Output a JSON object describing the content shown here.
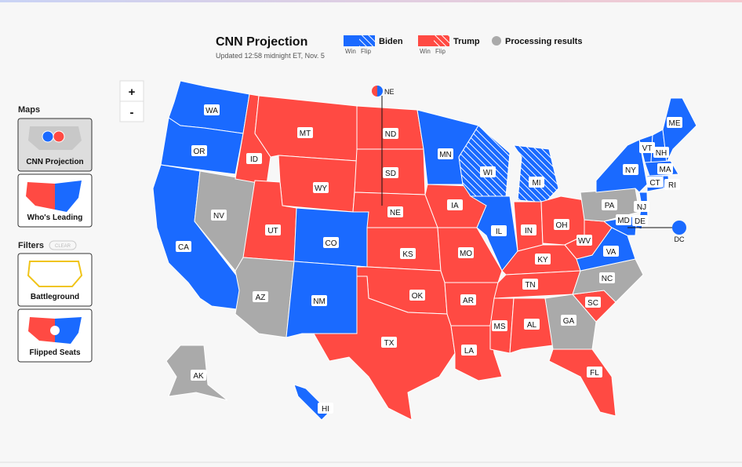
{
  "header": {
    "title": "CNN Projection",
    "updated": "Updated 12:58 midnight ET, Nov. 5",
    "legend": [
      {
        "name": "Biden",
        "status": "biden",
        "sub": [
          "Win",
          "Flip"
        ]
      },
      {
        "name": "Trump",
        "status": "trump",
        "sub": [
          "Win",
          "Flip"
        ]
      },
      {
        "name": "Processing results",
        "status": "processing"
      }
    ]
  },
  "zoom": [
    "+",
    "-"
  ],
  "sidebar": {
    "maps_heading": "Maps",
    "map_buttons": [
      "CNN Projection",
      "Who's Leading"
    ],
    "filters_heading": "Filters",
    "clear": "CLEAR",
    "filter_buttons": [
      "Battleground",
      "Flipped Seats"
    ]
  },
  "status_colors": {
    "biden": "#1a6aff",
    "trump": "#ff4a43",
    "processing": "#aaaaaa"
  },
  "states": [
    {
      "label": "WA",
      "status": "biden"
    },
    {
      "label": "OR",
      "status": "biden"
    },
    {
      "label": "CA",
      "status": "biden"
    },
    {
      "label": "NV",
      "status": "processing"
    },
    {
      "label": "ID",
      "status": "trump"
    },
    {
      "label": "MT",
      "status": "trump"
    },
    {
      "label": "WY",
      "status": "trump"
    },
    {
      "label": "UT",
      "status": "trump"
    },
    {
      "label": "AZ",
      "status": "processing"
    },
    {
      "label": "CO",
      "status": "biden"
    },
    {
      "label": "NM",
      "status": "biden"
    },
    {
      "label": "ND",
      "status": "trump"
    },
    {
      "label": "SD",
      "status": "trump"
    },
    {
      "label": "NE",
      "status": "trump"
    },
    {
      "label": "KS",
      "status": "trump"
    },
    {
      "label": "OK",
      "status": "trump"
    },
    {
      "label": "TX",
      "status": "trump"
    },
    {
      "label": "MN",
      "status": "biden"
    },
    {
      "label": "IA",
      "status": "trump"
    },
    {
      "label": "MO",
      "status": "trump"
    },
    {
      "label": "AR",
      "status": "trump"
    },
    {
      "label": "LA",
      "status": "trump"
    },
    {
      "label": "WI",
      "status": "biden",
      "flip": true
    },
    {
      "label": "IL",
      "status": "biden"
    },
    {
      "label": "MI",
      "status": "biden",
      "flip": true
    },
    {
      "label": "IN",
      "status": "trump"
    },
    {
      "label": "OH",
      "status": "trump"
    },
    {
      "label": "KY",
      "status": "trump"
    },
    {
      "label": "TN",
      "status": "trump"
    },
    {
      "label": "MS",
      "status": "trump"
    },
    {
      "label": "AL",
      "status": "trump"
    },
    {
      "label": "GA",
      "status": "processing"
    },
    {
      "label": "FL",
      "status": "trump"
    },
    {
      "label": "SC",
      "status": "trump"
    },
    {
      "label": "NC",
      "status": "processing"
    },
    {
      "label": "VA",
      "status": "biden"
    },
    {
      "label": "WV",
      "status": "trump"
    },
    {
      "label": "PA",
      "status": "processing"
    },
    {
      "label": "NY",
      "status": "biden"
    },
    {
      "label": "VT",
      "status": "biden"
    },
    {
      "label": "NH",
      "status": "biden"
    },
    {
      "label": "ME",
      "status": "biden"
    },
    {
      "label": "MA",
      "status": "biden"
    },
    {
      "label": "CT",
      "status": "biden"
    },
    {
      "label": "RI",
      "status": "biden"
    },
    {
      "label": "NJ",
      "status": "biden"
    },
    {
      "label": "DE",
      "status": "biden"
    },
    {
      "label": "MD",
      "status": "biden"
    },
    {
      "label": "AK",
      "status": "processing"
    },
    {
      "label": "HI",
      "status": "biden"
    }
  ],
  "callouts": [
    {
      "label": "NE",
      "status": "split"
    },
    {
      "label": "DC",
      "status": "biden"
    }
  ]
}
